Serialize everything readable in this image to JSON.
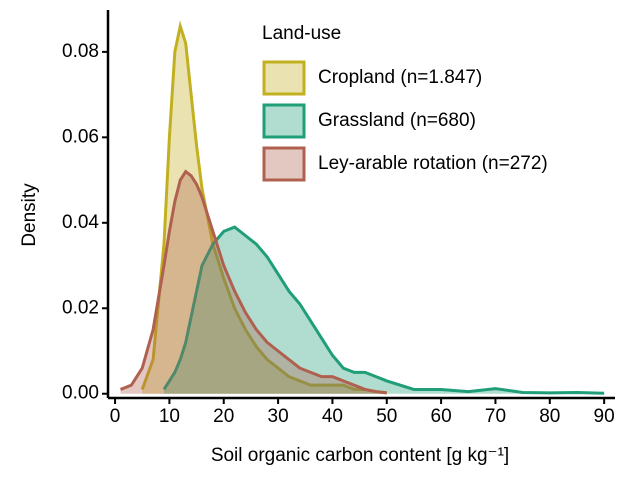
{
  "chart_data": {
    "type": "density",
    "x_label": "Soil organic carbon content [g kg⁻¹]",
    "y_label": "Density",
    "legend_title": "Land-use",
    "legend_position": "top-right",
    "x": [
      1,
      3,
      5,
      7,
      9,
      10,
      11,
      12,
      13,
      14,
      15,
      16,
      18,
      20,
      22,
      24,
      26,
      28,
      30,
      32,
      34,
      36,
      38,
      40,
      42,
      44,
      46,
      48,
      50,
      55,
      60,
      65,
      70,
      75,
      80,
      85,
      90
    ],
    "series": [
      {
        "name": "Cropland (n=1.847)",
        "color": "#c2b020",
        "values": [
          null,
          null,
          0.001,
          0.008,
          0.035,
          0.06,
          0.08,
          0.086,
          0.082,
          0.07,
          0.058,
          0.048,
          0.035,
          0.027,
          0.02,
          0.015,
          0.011,
          0.008,
          0.006,
          0.004,
          0.003,
          0.002,
          0.002,
          0.002,
          0.002,
          0.001,
          0.001,
          0.0005,
          0.0002,
          null,
          null,
          null,
          null,
          null,
          null,
          null,
          null
        ]
      },
      {
        "name": "Grassland  (n=680)",
        "color": "#1f9e78",
        "values": [
          null,
          null,
          null,
          null,
          0.001,
          0.003,
          0.005,
          0.008,
          0.012,
          0.018,
          0.024,
          0.03,
          0.035,
          0.038,
          0.039,
          0.037,
          0.035,
          0.032,
          0.028,
          0.024,
          0.021,
          0.017,
          0.013,
          0.009,
          0.006,
          0.005,
          0.005,
          0.004,
          0.003,
          0.001,
          0.001,
          0.0005,
          0.0012,
          0.0003,
          0.0002,
          0.0003,
          0.0001
        ]
      },
      {
        "name": "Ley-arable rotation (n=272)",
        "color": "#b0604f",
        "values": [
          0.001,
          0.002,
          0.006,
          0.015,
          0.03,
          0.038,
          0.045,
          0.05,
          0.052,
          0.051,
          0.049,
          0.046,
          0.038,
          0.03,
          0.024,
          0.019,
          0.015,
          0.012,
          0.01,
          0.008,
          0.006,
          0.005,
          0.004,
          0.004,
          0.003,
          0.002,
          0.001,
          0.0005,
          0.0002,
          null,
          null,
          null,
          null,
          null,
          null,
          null,
          null
        ]
      }
    ],
    "xlim": [
      -1.3,
      92
    ],
    "ylim": [
      -0.001,
      0.0898
    ],
    "xticks": [
      0,
      10,
      20,
      30,
      40,
      50,
      60,
      70,
      80,
      90
    ],
    "yticks": [
      {
        "value": 0,
        "label": "0.00"
      },
      0.02,
      0.04,
      0.06,
      0.08
    ]
  }
}
